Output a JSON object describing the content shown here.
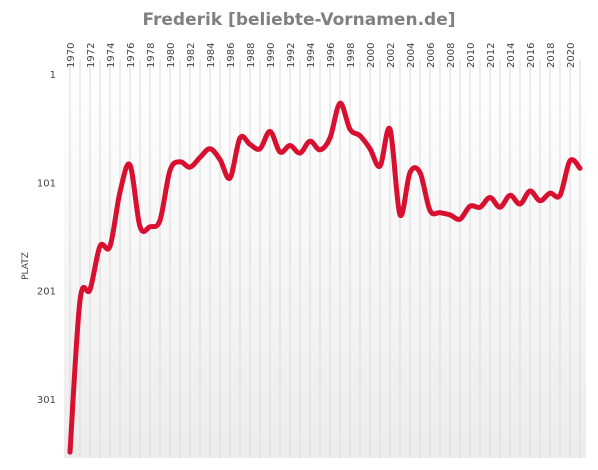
{
  "chart_data": {
    "type": "line",
    "title": "Frederik [beliebte-Vornamen.de]",
    "ylabel": "PLATZ",
    "xlabel": "",
    "y_reversed": true,
    "ylim": [
      1,
      350
    ],
    "yticks": [
      1,
      101,
      201,
      301
    ],
    "xticks": [
      1970,
      1972,
      1974,
      1976,
      1978,
      1980,
      1982,
      1984,
      1986,
      1988,
      1990,
      1992,
      1994,
      1996,
      1998,
      2000,
      2002,
      2004,
      2006,
      2008,
      2010,
      2012,
      2014,
      2016,
      2018,
      2020
    ],
    "grid": "vertical",
    "line_color": "#d90f2f",
    "series": [
      {
        "x": [
          1970,
          1971,
          1972,
          1973,
          1974,
          1975,
          1976,
          1977,
          1978,
          1979,
          1980,
          1981,
          1982,
          1983,
          1984,
          1985,
          1986,
          1987,
          1988,
          1989,
          1990,
          1991,
          1992,
          1993,
          1994,
          1995,
          1996,
          1997,
          1998,
          1999,
          2000,
          2001,
          2002,
          2003,
          2004,
          2005,
          2006,
          2007,
          2008,
          2009,
          2010,
          2011,
          2012,
          2013,
          2014,
          2015,
          2016,
          2017,
          2018,
          2019,
          2020,
          2021
        ],
        "values": [
          350,
          210,
          200,
          160,
          160,
          110,
          85,
          142,
          142,
          136,
          90,
          82,
          87,
          78,
          70,
          80,
          97,
          60,
          66,
          70,
          54,
          73,
          67,
          74,
          63,
          71,
          60,
          28,
          52,
          58,
          70,
          86,
          52,
          131,
          92,
          92,
          127,
          129,
          131,
          135,
          123,
          124,
          115,
          124,
          113,
          121,
          109,
          118,
          111,
          113,
          81,
          88
        ]
      }
    ]
  }
}
